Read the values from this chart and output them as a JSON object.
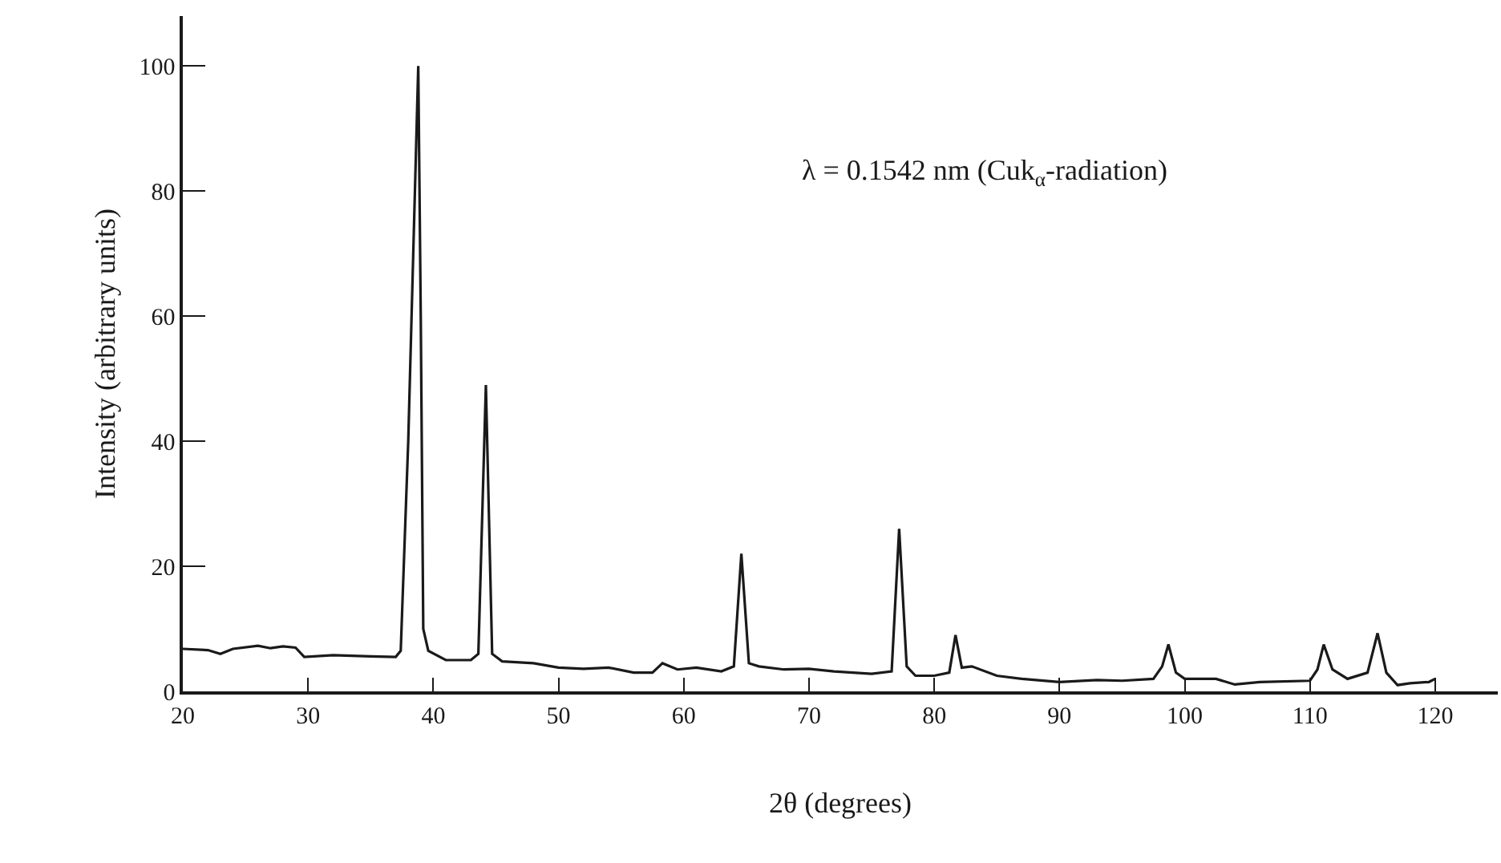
{
  "chart_data": {
    "type": "line",
    "xlabel": "2θ (degrees)",
    "ylabel": "Intensity (arbitrary units)",
    "annotations": [
      "λ = 0.1542 nm (Cuk$_{α}$-radiation)"
    ],
    "xlim": [
      20,
      125
    ],
    "xticks": [
      20,
      30,
      40,
      50,
      60,
      70,
      80,
      90,
      100,
      110,
      120
    ],
    "ylim": [
      0,
      108
    ],
    "yticks": [
      0,
      20,
      40,
      60,
      80,
      100
    ],
    "marker": "none",
    "line_style": "solid",
    "series": [
      {
        "color": "#1a1a1a",
        "x": [
          20,
          22,
          23,
          24,
          26,
          27,
          28,
          29,
          29.7,
          32,
          35,
          37,
          37.4,
          38.0,
          38.8,
          39.0,
          39.2,
          39.6,
          41,
          43,
          43.6,
          44.2,
          44.7,
          45.5,
          48,
          50,
          52,
          54,
          56,
          57.5,
          58.3,
          59.5,
          61,
          63,
          64,
          64.6,
          65.2,
          66,
          68,
          70,
          72,
          75,
          76.6,
          77.2,
          77.8,
          78.5,
          80,
          81.2,
          81.7,
          82.2,
          83,
          85,
          87,
          90,
          93,
          95,
          97.5,
          98.2,
          98.7,
          99.3,
          100,
          102.5,
          104,
          106,
          110,
          110.6,
          111.1,
          111.8,
          113,
          114.6,
          115.4,
          116.1,
          117,
          118,
          119.5,
          120
        ],
        "values": [
          6.8,
          6.6,
          6.0,
          6.8,
          7.3,
          6.9,
          7.2,
          7.0,
          5.5,
          5.8,
          5.6,
          5.5,
          6.5,
          40,
          100,
          60,
          10,
          6.5,
          5.0,
          5.0,
          6,
          49,
          6,
          4.8,
          4.5,
          3.8,
          3.6,
          3.8,
          3.0,
          3.0,
          4.5,
          3.5,
          3.8,
          3.2,
          4,
          22,
          4.5,
          4.0,
          3.5,
          3.6,
          3.2,
          2.8,
          3.2,
          26,
          4,
          2.5,
          2.5,
          3,
          9,
          3.8,
          4,
          2.5,
          2.0,
          1.5,
          1.8,
          1.7,
          2,
          4,
          7.5,
          3,
          2,
          2.0,
          1.1,
          1.5,
          1.7,
          3.5,
          7.5,
          3.5,
          2,
          3,
          9.3,
          3,
          1.0,
          1.3,
          1.5,
          2
        ]
      }
    ]
  }
}
